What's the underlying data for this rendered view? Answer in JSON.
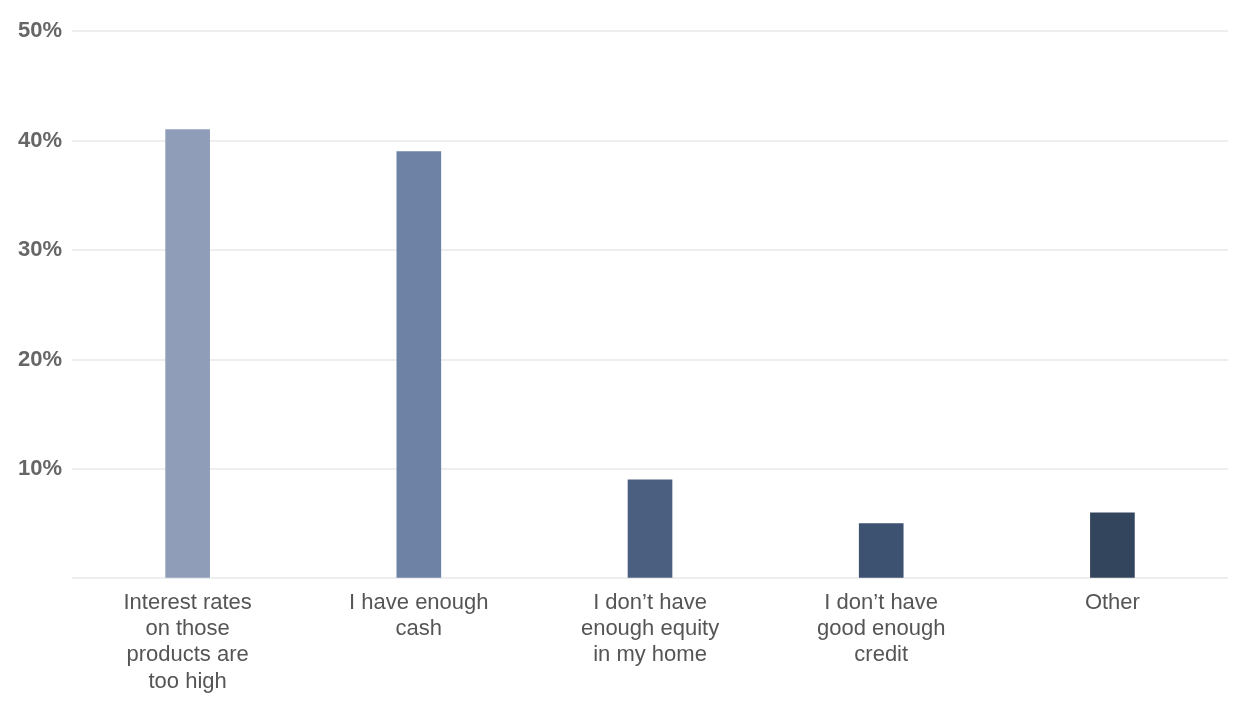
{
  "chart_data": {
    "type": "bar",
    "categories": [
      "Interest rates on those products are too high",
      "I have enough cash",
      "I don’t have enough equity in my home",
      "I don’t have good enough credit",
      "Other"
    ],
    "values": [
      41,
      39,
      9,
      5,
      6
    ],
    "colors": [
      "#8f9db8",
      "#6e82a5",
      "#4b6080",
      "#3d5170",
      "#33445d"
    ],
    "ylim": [
      0,
      50
    ],
    "yticks": [
      {
        "value": 0,
        "label": null
      },
      {
        "value": 10,
        "label": "10%"
      },
      {
        "value": 20,
        "label": "20%"
      },
      {
        "value": 30,
        "label": "30%"
      },
      {
        "value": 40,
        "label": "40%"
      },
      {
        "value": 50,
        "label": "50%"
      }
    ],
    "grid": "y",
    "legend": false
  }
}
